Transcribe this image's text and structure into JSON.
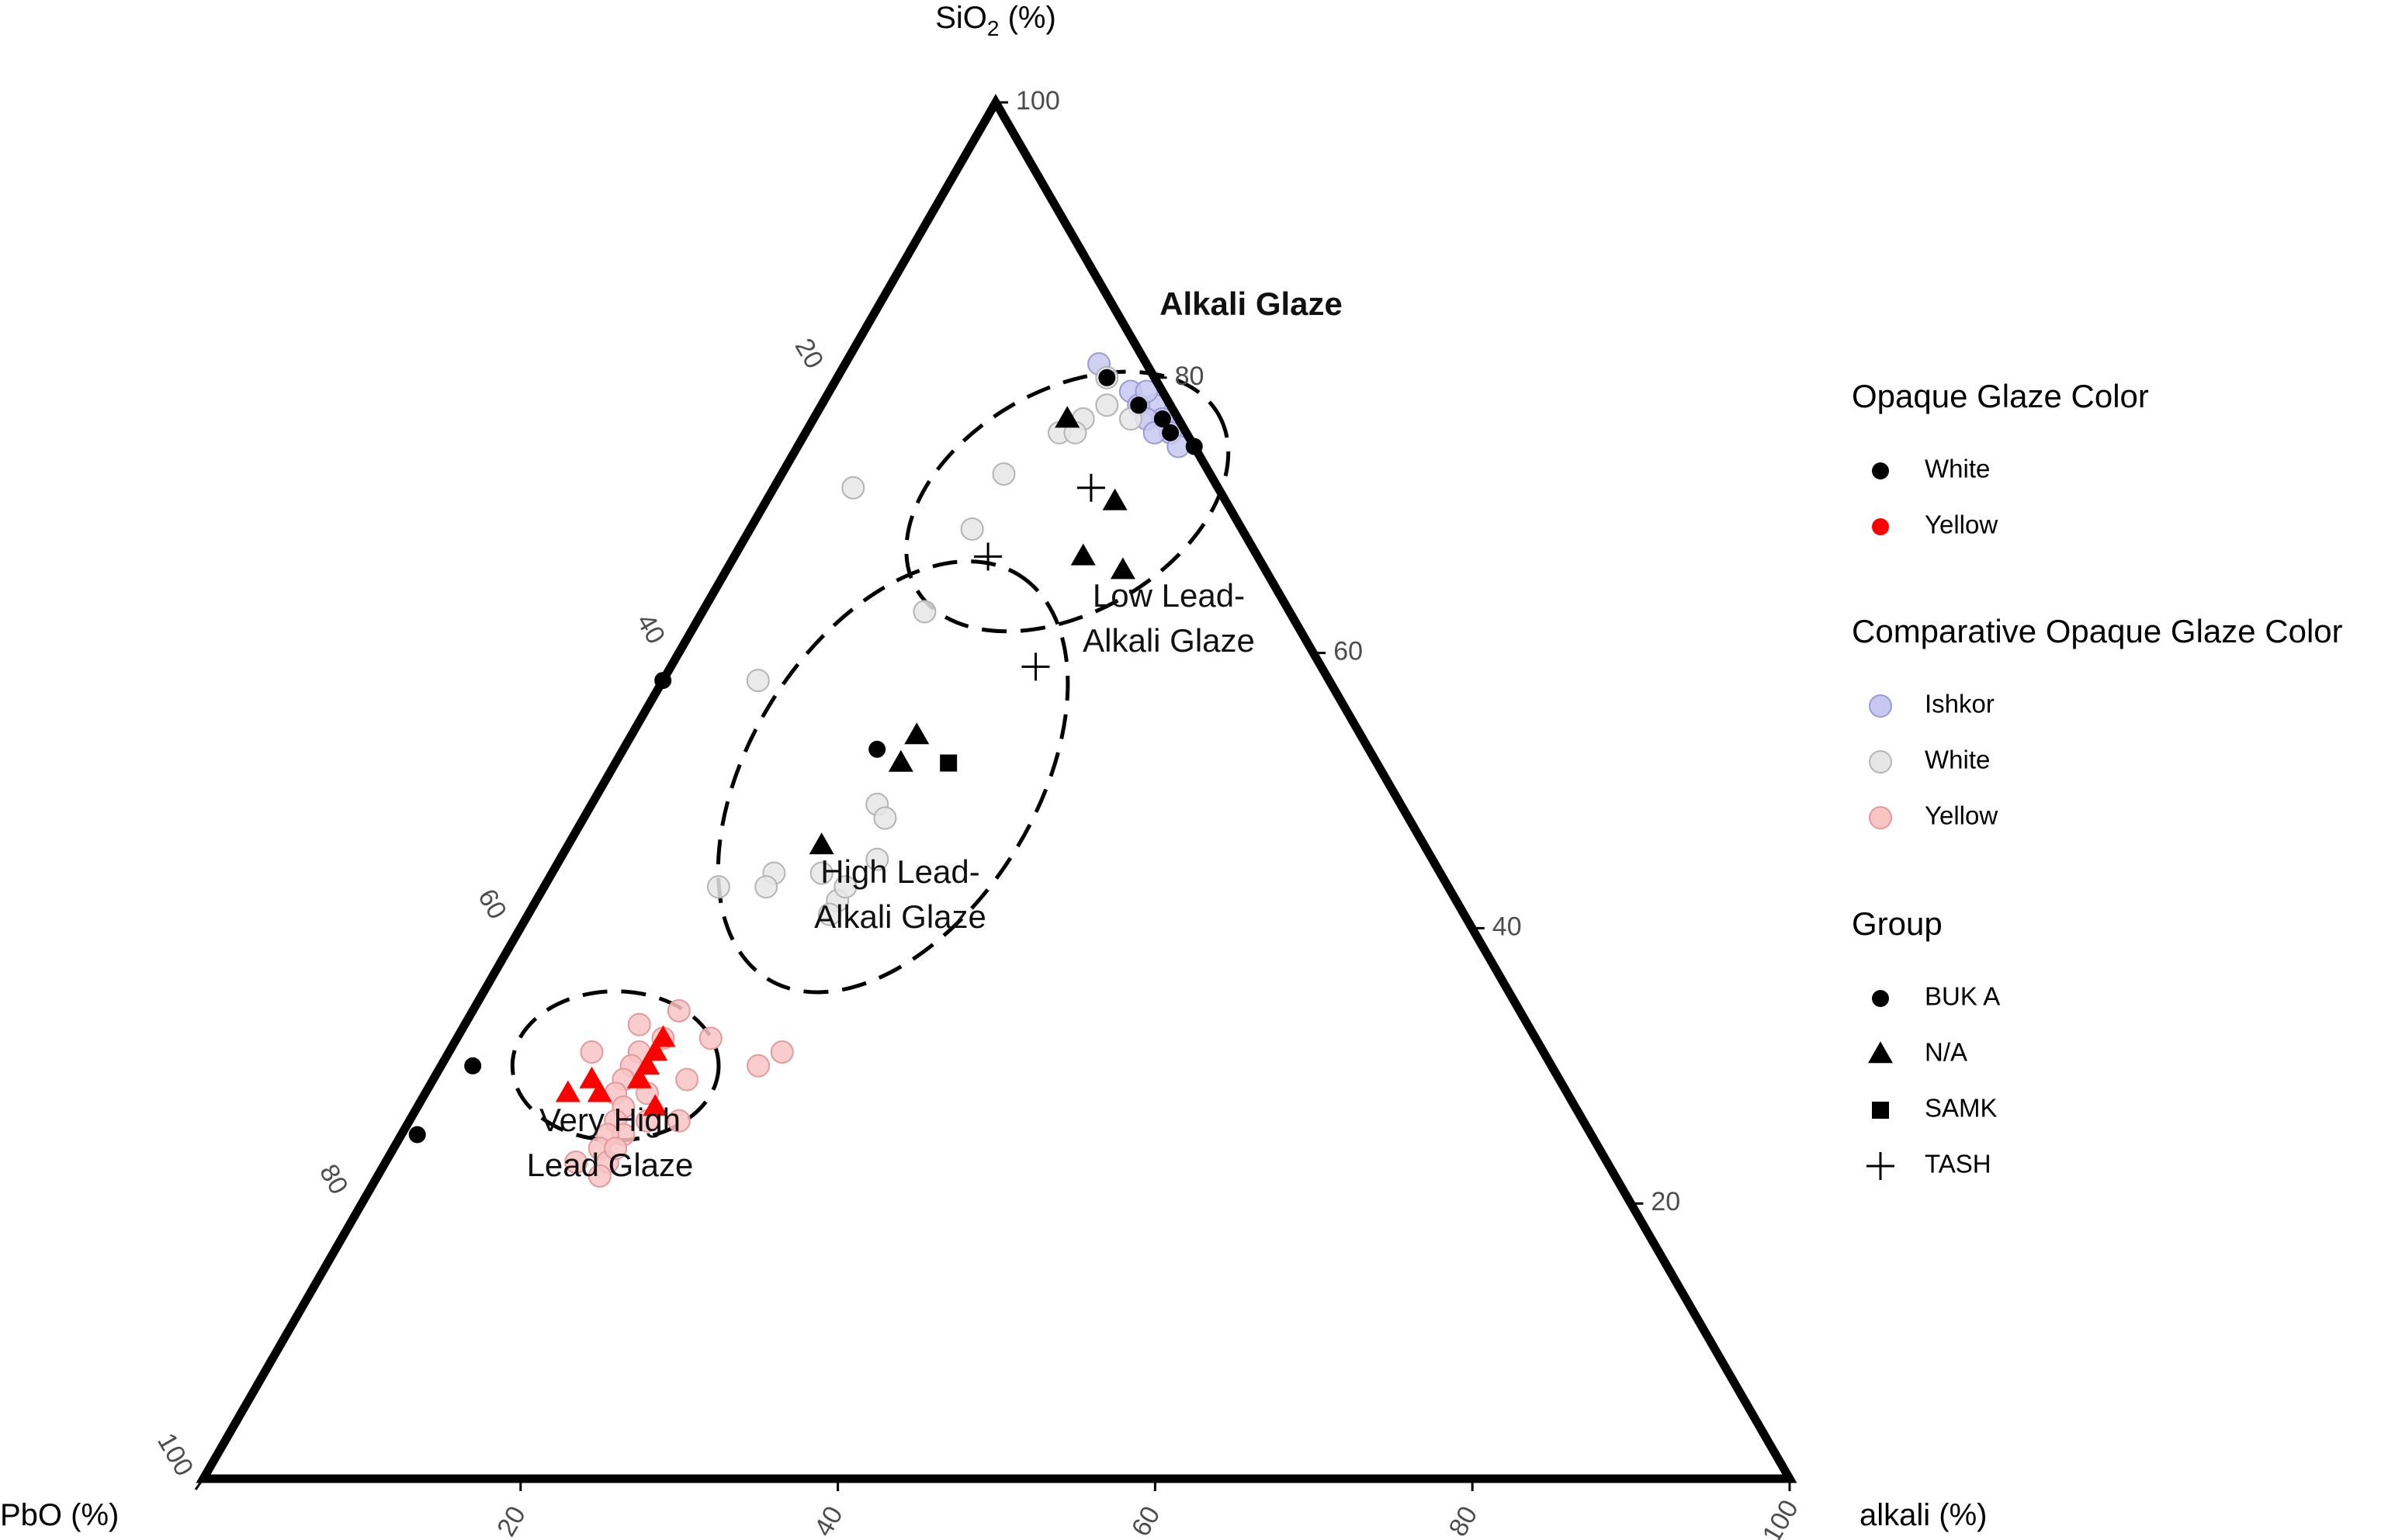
{
  "chart_data": {
    "type": "scatter",
    "subtype": "ternary",
    "axes": {
      "top": {
        "label_text": "SiO",
        "label_sub": "2",
        "label_unit": " (%)"
      },
      "left": {
        "label": "PbO (%)"
      },
      "right": {
        "label": "alkali (%)"
      },
      "ticks": [
        20,
        40,
        60,
        80,
        100
      ],
      "range": [
        0,
        100
      ]
    },
    "colors": {
      "white": "#000000",
      "yellow": "#ff0000",
      "ishkor_cmp": "#c8c8f0",
      "white_cmp": "#e6e6e6",
      "yellow_cmp": "#f8c4c4",
      "ishkor_cmp_stroke": "#9a9ad8",
      "white_cmp_stroke": "#b4b4b4",
      "yellow_cmp_stroke": "#e49a9a"
    },
    "comparative_series": [
      {
        "name": "Ishkor",
        "color_key": "ishkor",
        "points": [
          {
            "SiO2": 81,
            "PbO": 3,
            "alkali": 16
          },
          {
            "SiO2": 79,
            "PbO": 2,
            "alkali": 19
          },
          {
            "SiO2": 78,
            "PbO": 1,
            "alkali": 21
          },
          {
            "SiO2": 77,
            "PbO": 1,
            "alkali": 22
          },
          {
            "SiO2": 76,
            "PbO": 1,
            "alkali": 23
          },
          {
            "SiO2": 75,
            "PbO": 1,
            "alkali": 24
          },
          {
            "SiO2": 78,
            "PbO": 2,
            "alkali": 20
          },
          {
            "SiO2": 77,
            "PbO": 2,
            "alkali": 21
          },
          {
            "SiO2": 76,
            "PbO": 2,
            "alkali": 22
          },
          {
            "SiO2": 79,
            "PbO": 1,
            "alkali": 20
          }
        ]
      },
      {
        "name": "White",
        "color_key": "white",
        "points": [
          {
            "SiO2": 80,
            "PbO": 3,
            "alkali": 17
          },
          {
            "SiO2": 77,
            "PbO": 3,
            "alkali": 20
          },
          {
            "SiO2": 77,
            "PbO": 6,
            "alkali": 17
          },
          {
            "SiO2": 78,
            "PbO": 4,
            "alkali": 18
          },
          {
            "SiO2": 76,
            "PbO": 8,
            "alkali": 16
          },
          {
            "SiO2": 76,
            "PbO": 7,
            "alkali": 17
          },
          {
            "SiO2": 73,
            "PbO": 13,
            "alkali": 14
          },
          {
            "SiO2": 69,
            "PbO": 17,
            "alkali": 14
          },
          {
            "SiO2": 72,
            "PbO": 23,
            "alkali": 5
          },
          {
            "SiO2": 63,
            "PbO": 23,
            "alkali": 14
          },
          {
            "SiO2": 58,
            "PbO": 36,
            "alkali": 6
          },
          {
            "SiO2": 49,
            "PbO": 33,
            "alkali": 18
          },
          {
            "SiO2": 48,
            "PbO": 33,
            "alkali": 19
          },
          {
            "SiO2": 45,
            "PbO": 35,
            "alkali": 20
          },
          {
            "SiO2": 43,
            "PbO": 46,
            "alkali": 11
          },
          {
            "SiO2": 44,
            "PbO": 42,
            "alkali": 14
          },
          {
            "SiO2": 43,
            "PbO": 43,
            "alkali": 14
          },
          {
            "SiO2": 42,
            "PbO": 39,
            "alkali": 19
          },
          {
            "SiO2": 41,
            "PbO": 40,
            "alkali": 19
          },
          {
            "SiO2": 44,
            "PbO": 39,
            "alkali": 17
          },
          {
            "SiO2": 43,
            "PbO": 38,
            "alkali": 19
          }
        ]
      },
      {
        "name": "Yellow",
        "color_key": "yellow",
        "points": [
          {
            "SiO2": 34,
            "PbO": 53,
            "alkali": 13
          },
          {
            "SiO2": 33,
            "PbO": 56,
            "alkali": 11
          },
          {
            "SiO2": 32,
            "PbO": 55,
            "alkali": 13
          },
          {
            "SiO2": 31,
            "PbO": 60,
            "alkali": 9
          },
          {
            "SiO2": 31,
            "PbO": 57,
            "alkali": 12
          },
          {
            "SiO2": 30,
            "PbO": 58,
            "alkali": 12
          },
          {
            "SiO2": 29,
            "PbO": 59,
            "alkali": 12
          },
          {
            "SiO2": 28,
            "PbO": 60,
            "alkali": 12
          },
          {
            "SiO2": 28,
            "PbO": 58,
            "alkali": 14
          },
          {
            "SiO2": 27,
            "PbO": 60,
            "alkali": 13
          },
          {
            "SiO2": 26,
            "PbO": 61,
            "alkali": 13
          },
          {
            "SiO2": 26,
            "PbO": 59,
            "alkali": 15
          },
          {
            "SiO2": 25,
            "PbO": 61,
            "alkali": 14
          },
          {
            "SiO2": 25,
            "PbO": 62,
            "alkali": 13
          },
          {
            "SiO2": 24,
            "PbO": 63,
            "alkali": 13
          },
          {
            "SiO2": 23,
            "PbO": 65,
            "alkali": 12
          },
          {
            "SiO2": 23,
            "PbO": 63,
            "alkali": 14
          },
          {
            "SiO2": 22,
            "PbO": 64,
            "alkali": 14
          },
          {
            "SiO2": 26,
            "PbO": 57,
            "alkali": 17
          },
          {
            "SiO2": 32,
            "PbO": 52,
            "alkali": 16
          },
          {
            "SiO2": 30,
            "PbO": 50,
            "alkali": 20
          },
          {
            "SiO2": 29,
            "PbO": 55,
            "alkali": 16
          },
          {
            "SiO2": 24,
            "PbO": 62,
            "alkali": 14
          },
          {
            "SiO2": 31,
            "PbO": 48,
            "alkali": 21
          }
        ]
      }
    ],
    "study_points": [
      {
        "SiO2": 77,
        "PbO": 7,
        "alkali": 16,
        "color": "white",
        "group": "N/A"
      },
      {
        "SiO2": 72,
        "PbO": 8,
        "alkali": 20,
        "color": "white",
        "group": "TASH"
      },
      {
        "SiO2": 71,
        "PbO": 7,
        "alkali": 22,
        "color": "white",
        "group": "N/A"
      },
      {
        "SiO2": 67,
        "PbO": 11,
        "alkali": 22,
        "color": "white",
        "group": "N/A"
      },
      {
        "SiO2": 66,
        "PbO": 9,
        "alkali": 25,
        "color": "white",
        "group": "N/A"
      },
      {
        "SiO2": 67,
        "PbO": 17,
        "alkali": 16,
        "color": "white",
        "group": "TASH"
      },
      {
        "SiO2": 59,
        "PbO": 18,
        "alkali": 23,
        "color": "white",
        "group": "TASH"
      },
      {
        "SiO2": 53,
        "PbO": 31,
        "alkali": 16,
        "color": "white",
        "group": "BUK A"
      },
      {
        "SiO2": 54,
        "PbO": 28,
        "alkali": 18,
        "color": "white",
        "group": "N/A"
      },
      {
        "SiO2": 52,
        "PbO": 30,
        "alkali": 18,
        "color": "white",
        "group": "N/A"
      },
      {
        "SiO2": 52,
        "PbO": 27,
        "alkali": 21,
        "color": "white",
        "group": "SAMK"
      },
      {
        "SiO2": 46,
        "PbO": 38,
        "alkali": 16,
        "color": "white",
        "group": "N/A"
      },
      {
        "SiO2": 80,
        "PbO": 3,
        "alkali": 17,
        "color": "white",
        "group": "BUK A"
      },
      {
        "SiO2": 78,
        "PbO": 2,
        "alkali": 20,
        "color": "white",
        "group": "BUK A"
      },
      {
        "SiO2": 77,
        "PbO": 1,
        "alkali": 22,
        "color": "white",
        "group": "BUK A"
      },
      {
        "SiO2": 76,
        "PbO": 1,
        "alkali": 23,
        "color": "white",
        "group": "BUK A"
      },
      {
        "SiO2": 75,
        "PbO": 0,
        "alkali": 25,
        "color": "white",
        "group": "BUK A"
      },
      {
        "SiO2": 58,
        "PbO": 42,
        "alkali": 0,
        "color": "white",
        "group": "BUK A"
      },
      {
        "SiO2": 30,
        "PbO": 68,
        "alkali": 2,
        "color": "white",
        "group": "BUK A"
      },
      {
        "SiO2": 25,
        "PbO": 74,
        "alkali": 1,
        "color": "white",
        "group": "BUK A"
      },
      {
        "SiO2": 32,
        "PbO": 55,
        "alkali": 13,
        "color": "yellow",
        "group": "N/A"
      },
      {
        "SiO2": 31,
        "PbO": 56,
        "alkali": 13,
        "color": "yellow",
        "group": "N/A"
      },
      {
        "SiO2": 30,
        "PbO": 57,
        "alkali": 13,
        "color": "yellow",
        "group": "N/A"
      },
      {
        "SiO2": 29,
        "PbO": 61,
        "alkali": 10,
        "color": "yellow",
        "group": "N/A"
      },
      {
        "SiO2": 28,
        "PbO": 61,
        "alkali": 11,
        "color": "yellow",
        "group": "N/A"
      },
      {
        "SiO2": 28,
        "PbO": 63,
        "alkali": 9,
        "color": "yellow",
        "group": "N/A"
      },
      {
        "SiO2": 27,
        "PbO": 58,
        "alkali": 15,
        "color": "yellow",
        "group": "N/A"
      },
      {
        "SiO2": 29,
        "PbO": 58,
        "alkali": 13,
        "color": "yellow",
        "group": "N/A"
      }
    ],
    "ellipses": [
      {
        "name": "low-lead-alkali",
        "center": {
          "SiO2": 71,
          "PbO": 10,
          "alkali": 19
        },
        "rx_units": 11,
        "ry_units": 7,
        "angle": -30
      },
      {
        "name": "high-lead-alkali",
        "center": {
          "SiO2": 51,
          "PbO": 31,
          "alkali": 18
        },
        "rx_units": 15,
        "ry_units": 9,
        "angle": -58
      },
      {
        "name": "very-high-lead",
        "center": {
          "SiO2": 30,
          "PbO": 59,
          "alkali": 11
        },
        "rx_units": 6.5,
        "ry_units": 4.7,
        "angle": 0
      }
    ],
    "annotations": [
      {
        "name": "alkali-glaze-label",
        "lines": [
          "Alkali Glaze"
        ],
        "bold": true
      },
      {
        "name": "low-lead-alkali-label",
        "lines": [
          "Low Lead-",
          "Alkali Glaze"
        ]
      },
      {
        "name": "high-lead-alkali-label",
        "lines": [
          "High Lead-",
          "Alkali Glaze"
        ]
      },
      {
        "name": "very-high-lead-label",
        "lines": [
          "Very High",
          "Lead Glaze"
        ]
      }
    ],
    "legend": {
      "placement": "right",
      "sections": [
        {
          "title": "Opaque Glaze Color",
          "items": [
            {
              "label": "White",
              "shape": "circle",
              "color": "white"
            },
            {
              "label": "Yellow",
              "shape": "circle",
              "color": "yellow"
            }
          ]
        },
        {
          "title": "Comparative Opaque Glaze Color",
          "items": [
            {
              "label": "Ishkor",
              "shape": "circle",
              "color": "ishkor_cmp"
            },
            {
              "label": "White",
              "shape": "circle",
              "color": "white_cmp"
            },
            {
              "label": "Yellow",
              "shape": "circle",
              "color": "yellow_cmp"
            }
          ]
        },
        {
          "title": "Group",
          "items": [
            {
              "label": "BUK A",
              "shape": "circle"
            },
            {
              "label": "N/A",
              "shape": "triangle"
            },
            {
              "label": "SAMK",
              "shape": "square"
            },
            {
              "label": "TASH",
              "shape": "plus"
            }
          ]
        }
      ]
    }
  }
}
